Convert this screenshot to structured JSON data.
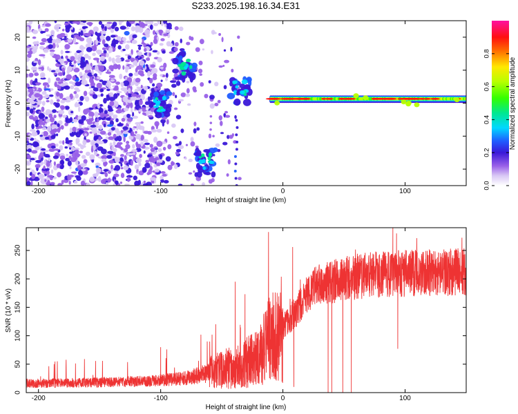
{
  "figure": {
    "title": "S233.2025.198.16.34.E31"
  },
  "chart_data": [
    {
      "type": "heatmap",
      "title": "S233.2025.198.16.34.E31",
      "xlabel": "Height of straight line (km)",
      "ylabel": "Frequency (Hz)",
      "xlim": [
        -210,
        150
      ],
      "ylim": [
        -25,
        25
      ],
      "x_ticks": [
        -200,
        -100,
        0,
        100
      ],
      "y_ticks": [
        -20,
        -10,
        0,
        10,
        20
      ],
      "colorbar": {
        "label": "Normalized spectral amplitude",
        "range": [
          0,
          1
        ],
        "ticks": [
          0.0,
          0.2,
          0.4,
          0.6,
          0.8
        ],
        "colormap": "rainbow (white-purple-blue-cyan-green-yellow-red-pink)"
      },
      "features": [
        {
          "region": "scattered noise",
          "x_range": [
            -210,
            -110
          ],
          "freq_range": [
            -25,
            25
          ],
          "amplitude": 0.15
        },
        {
          "region": "cluster",
          "x": -100,
          "freq": 0,
          "amplitude": 0.3
        },
        {
          "region": "cluster",
          "x": -80,
          "freq": 11,
          "amplitude": 0.3
        },
        {
          "region": "cluster",
          "x": -63,
          "freq": -18,
          "amplitude": 0.3
        },
        {
          "region": "cluster",
          "x": -35,
          "freq": 4,
          "amplitude": 0.3
        },
        {
          "region": "narrow band",
          "x_range": [
            -10,
            150
          ],
          "freq": 1,
          "amplitude": 0.85
        }
      ]
    },
    {
      "type": "line",
      "xlabel": "Height of straight line (km)",
      "ylabel": "SNR (10 * v/v)",
      "xlim": [
        -210,
        150
      ],
      "ylim": [
        0,
        290
      ],
      "x_ticks": [
        -200,
        -100,
        0,
        100
      ],
      "y_ticks": [
        0,
        50,
        100,
        150,
        200,
        250
      ],
      "color": "#ee3333",
      "trend": {
        "x": [
          -210,
          -150,
          -110,
          -80,
          -60,
          -40,
          -20,
          -10,
          0,
          10,
          20,
          30,
          50,
          70,
          100,
          130,
          150
        ],
        "y": [
          16,
          18,
          20,
          25,
          35,
          45,
          60,
          95,
          115,
          140,
          175,
          190,
          200,
          207,
          210,
          212,
          212
        ]
      },
      "spikes": [
        {
          "x": -100,
          "y": 80
        },
        {
          "x": -39,
          "y": 195
        },
        {
          "x": -31,
          "y": 173
        },
        {
          "x": 8,
          "y": 256
        },
        {
          "x": 90,
          "y": 290
        },
        {
          "x": 93,
          "y": 280
        }
      ],
      "dips": [
        {
          "x": 9,
          "y": 10
        },
        {
          "x": 37,
          "y": 0
        },
        {
          "x": 40,
          "y": 0
        },
        {
          "x": 49,
          "y": 0
        },
        {
          "x": 56,
          "y": 0
        },
        {
          "x": 94,
          "y": 77
        }
      ]
    }
  ]
}
